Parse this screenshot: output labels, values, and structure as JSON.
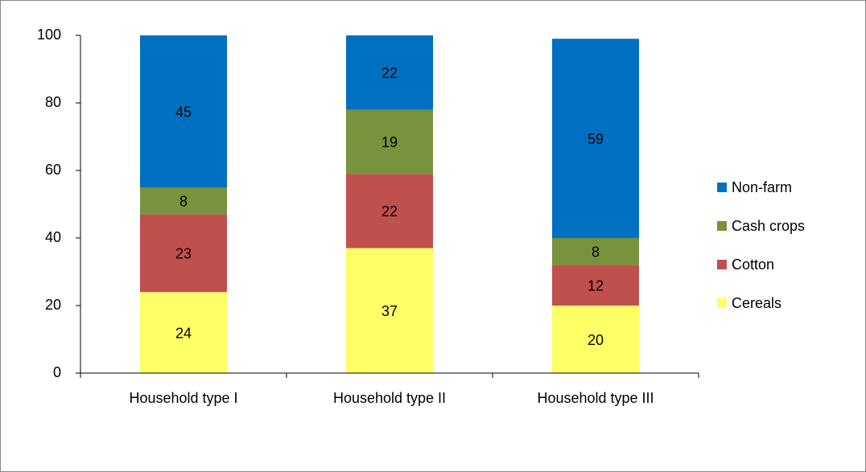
{
  "chart_data": {
    "type": "stacked_bar",
    "categories": [
      "Household type I",
      "Household type II",
      "Household type III"
    ],
    "series": [
      {
        "name": "Cereals",
        "color": "#ffff66",
        "values": [
          24,
          37,
          20
        ]
      },
      {
        "name": "Cotton",
        "color": "#c0504d",
        "values": [
          23,
          22,
          12
        ]
      },
      {
        "name": "Cash crops",
        "color": "#77933c",
        "values": [
          8,
          19,
          8
        ]
      },
      {
        "name": "Non-farm",
        "color": "#0070c0",
        "values": [
          45,
          22,
          59
        ]
      }
    ],
    "ylim": [
      0,
      100
    ],
    "yticks": [
      0,
      20,
      40,
      60,
      80,
      100
    ],
    "grid": false,
    "legend": "right"
  }
}
